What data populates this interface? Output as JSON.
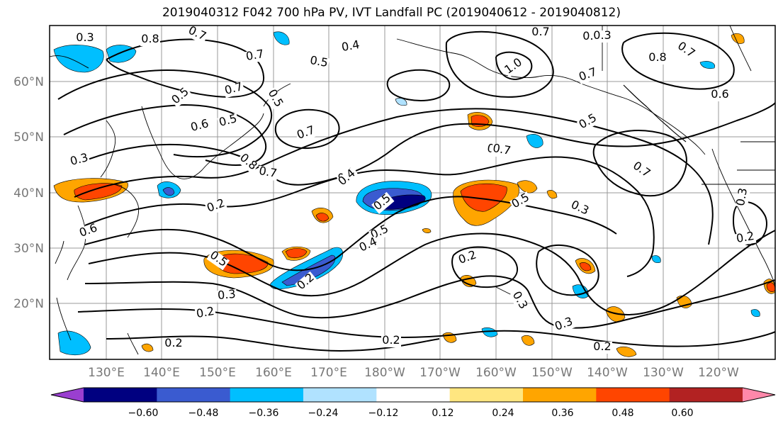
{
  "title": "2019040312 F042 700 hPa PV, IVT Landfall PC (2019040612 - 2019040812)",
  "lat_labels": [
    "60°N",
    "50°N",
    "40°N",
    "30°N",
    "20°N"
  ],
  "lon_labels": [
    "130°E",
    "140°E",
    "150°E",
    "160°E",
    "170°E",
    "180°W",
    "170°W",
    "160°W",
    "150°W",
    "140°W",
    "130°W",
    "120°W"
  ],
  "colorbar": {
    "colors": [
      "#9a3fd0",
      "#000080",
      "#3a5bd0",
      "#00bfff",
      "#b0e2ff",
      "#ffffff",
      "#ffe680",
      "#ffa500",
      "#ff4500",
      "#b22222",
      "#ff88aa"
    ],
    "tick_labels": [
      "−0.60",
      "−0.48",
      "−0.36",
      "−0.24",
      "−0.12",
      "0.12",
      "0.24",
      "0.36",
      "0.48",
      "0.60"
    ]
  },
  "contour_labels": [
    "0.8",
    "0.7",
    "0.4",
    "0.5",
    "0.7",
    "0.6",
    "0.7",
    "0.8",
    "0.7",
    "0.5",
    "0.7",
    "0.5",
    "0.4",
    "0.6",
    "0.5",
    "0.6",
    "0.7",
    "0.8",
    "0.7",
    "1.0",
    "0.8",
    "0.7",
    "0.6",
    "0.7",
    "0.3",
    "0.2",
    "0.5",
    "0.2",
    "0.4",
    "0.3",
    "0.5",
    "0.7",
    "0.5",
    "0.3",
    "0.3",
    "0.5",
    "0.4",
    "0.5",
    "0.2",
    "0.3",
    "0.2",
    "0.2",
    "0.2",
    "0.3",
    "0.2",
    "0.2",
    "0.3",
    "0.3"
  ]
}
